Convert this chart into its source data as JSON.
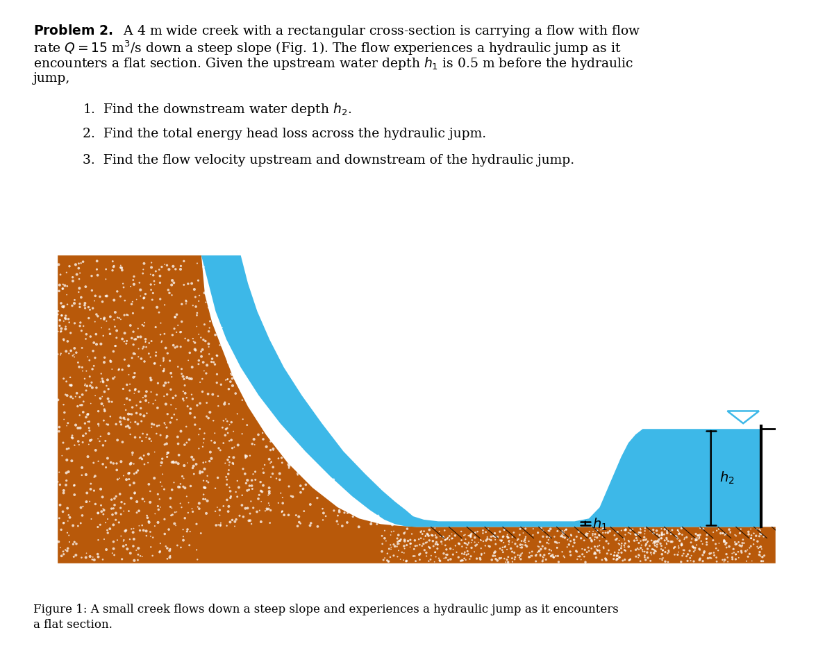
{
  "bg_color": "#ffffff",
  "soil_color": "#b8590a",
  "water_color": "#3db8e8",
  "text_color": "#000000",
  "figure_caption": "Figure 1: A small creek flows down a steep slope and experiences a hydraulic jump as it encounters\na flat section."
}
